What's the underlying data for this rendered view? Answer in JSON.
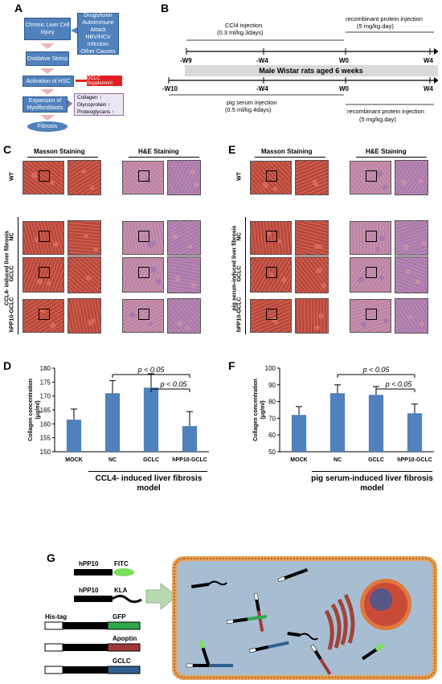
{
  "panels": {
    "a": "A",
    "b": "B",
    "c": "C",
    "d": "D",
    "e": "E",
    "f": "F",
    "g": "G"
  },
  "flow": {
    "liver_injury": "Chronic Liver Cell Injury",
    "causes": [
      "Drugs/toxin",
      "Autoimmune",
      "Attack",
      "HBV/HCV",
      "Infection",
      "Other Causes"
    ],
    "oxidative": "Oxidative Stress",
    "activation": "Activation of HSC",
    "gclc_supplement": "GCLC Supplement",
    "expansion": "Expansion of Myofibroblasts",
    "products": [
      "Collagen ↑",
      "Glycoprotein ↑",
      "Proteoglycans ↑"
    ],
    "fibrosis": "Fibrosis"
  },
  "timeline": {
    "ccl4_inj": "CCl4 injection",
    "ccl4_dose": "(0.3 ml/kg.3days)",
    "rec_top": "recombinant protein injection",
    "rec_top_dose": "(5 mg/kg.day)",
    "top_ticks": [
      "-W9",
      "-W4",
      "W0",
      "W4"
    ],
    "rats": "Male Wistar rats aged 6 weeks",
    "bottom_ticks": [
      "-W10",
      "-W4",
      "W0",
      "W4"
    ],
    "pig_inj": "pig serum injection",
    "pig_dose": "(0.5 ml/kg.4days)",
    "rec_bottom": "recombinant protein injection",
    "rec_bottom_dose": "(5 mg/kg.day)"
  },
  "staining": {
    "masson": "Masson Staining",
    "he": "H&E Staining",
    "rows": [
      "WT",
      "NC",
      "GCLC",
      "hPP10-GCLC"
    ],
    "ccl4_side": "CCL4- induced liver fibrosis",
    "pig_side": "pig serum-induced liver fibrosis",
    "colors": {
      "masson_bg": "#b8483c",
      "masson_hi": "#d96a5a",
      "he_bg": "#c98ea6",
      "he_hi": "#a77bb0",
      "blue": "#6b8fb5"
    }
  },
  "chart_d_caption": "CCL4- induced liver fibrosis model",
  "chart_f_caption": "pig serum-induced liver fibrosis model",
  "chart_data": [
    {
      "type": "bar",
      "categories": [
        "MOCK",
        "NC",
        "GCLC",
        "hPP10-GCLC"
      ],
      "values": [
        161.5,
        171,
        173,
        159.2
      ],
      "errors": [
        3.8,
        4.5,
        5,
        5.2
      ],
      "ylabel": "Collagen concentration (μg/ml)",
      "ylim": [
        150,
        180
      ],
      "yticks": [
        150,
        155,
        160,
        165,
        170,
        175,
        180
      ],
      "annotations": [
        "p < 0.05",
        "p < 0.05"
      ],
      "grid": false,
      "color": "#4f81bd"
    },
    {
      "type": "bar",
      "categories": [
        "MOCK",
        "NC",
        "GCLC",
        "hPP10-GCLC"
      ],
      "values": [
        72,
        85,
        84,
        73
      ],
      "errors": [
        5,
        5,
        5,
        5.5
      ],
      "ylabel": "Collagen concentration (μg/ml)",
      "ylim": [
        50,
        100
      ],
      "yticks": [
        50,
        60,
        70,
        80,
        90,
        100
      ],
      "annotations": [
        "p < 0.05",
        "p < 0.05"
      ],
      "grid": false,
      "color": "#4f81bd"
    }
  ],
  "constructs": {
    "hpp10_a": "hPP10",
    "fitc": "FITC",
    "hpp10_b": "hPP10",
    "kla": "KLA",
    "his": "His-tag",
    "gfp": "GFP",
    "apoptin": "Apoptin",
    "gclc": "GCLC",
    "colors": {
      "gfp": "#2ea84a",
      "apoptin": "#a03a3a",
      "gclc": "#2e5f8f",
      "fitc": "#7be05a",
      "cell": "#a7bed2",
      "membrane": "#e8a25a",
      "nucleus": "#c94b37"
    }
  }
}
